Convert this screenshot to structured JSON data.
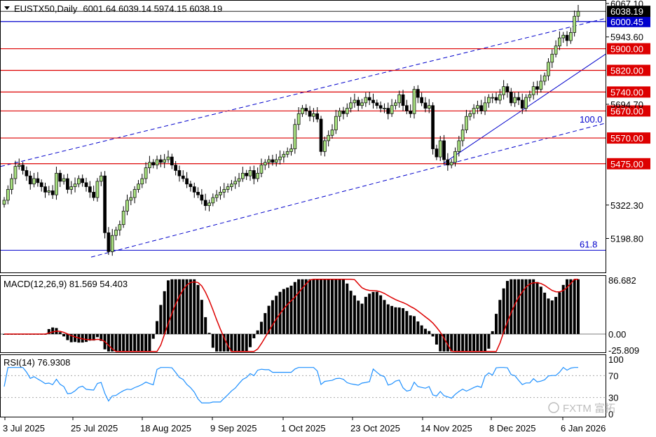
{
  "chart_data": {
    "type": "candlestick",
    "symbol": "EUSTX50",
    "timeframe": "Daily",
    "ohlc": [
      "6001.64",
      "6039.14",
      "5974.15",
      "6038.19"
    ],
    "price_axis": {
      "range": [
        5120,
        6067.1
      ],
      "ticks": [
        "6067.10",
        "5943.60",
        "5694.70",
        "5322.30",
        "5198.80"
      ],
      "partial_ticks": [
        "5570.00",
        "5475.00"
      ]
    },
    "current_price": "6038.19",
    "horizontal_levels": [
      {
        "label": "6000.45",
        "value": 6000.45,
        "color": "#0000cc"
      },
      {
        "label": "5900.00",
        "value": 5900,
        "color": "#dd0000"
      },
      {
        "label": "5820.00",
        "value": 5820,
        "color": "#dd0000"
      },
      {
        "label": "5740.00",
        "value": 5740,
        "color": "#dd0000"
      },
      {
        "label": "5670.00",
        "value": 5670,
        "color": "#dd0000"
      },
      {
        "label": "5570.00",
        "value": 5570,
        "color": "#dd0000"
      },
      {
        "label": "5475.00",
        "value": 5475,
        "color": "#dd0000"
      }
    ],
    "fib_labels": [
      {
        "label": "100.0",
        "value": 5617
      },
      {
        "label": "61.8",
        "value": 5155
      }
    ],
    "x_axis_labels": [
      "3 Jul 2025",
      "25 Jul 2025",
      "18 Aug 2025",
      "9 Sep 2025",
      "1 Oct 2025",
      "23 Oct 2025",
      "14 Nov 2025",
      "8 Dec 2025",
      "6 Jan 2026"
    ],
    "macd": {
      "title": "MACD(12,26,9) 81.569 54.403",
      "ticks": [
        "86.682",
        "0.00",
        "-25.809"
      ],
      "range": [
        -30,
        92
      ]
    },
    "rsi": {
      "title": "RSI(14) 76.9308",
      "ticks": [
        "100",
        "70",
        "30",
        "0"
      ],
      "range": [
        0,
        100
      ],
      "levels": [
        70,
        30
      ]
    },
    "colors": {
      "bull": "#a8e080",
      "bear": "#000000",
      "rsi_line": "#1e90ff",
      "signal": "#dd0000",
      "channel": "#0000cc"
    }
  },
  "watermark": "FXTM 富拓"
}
